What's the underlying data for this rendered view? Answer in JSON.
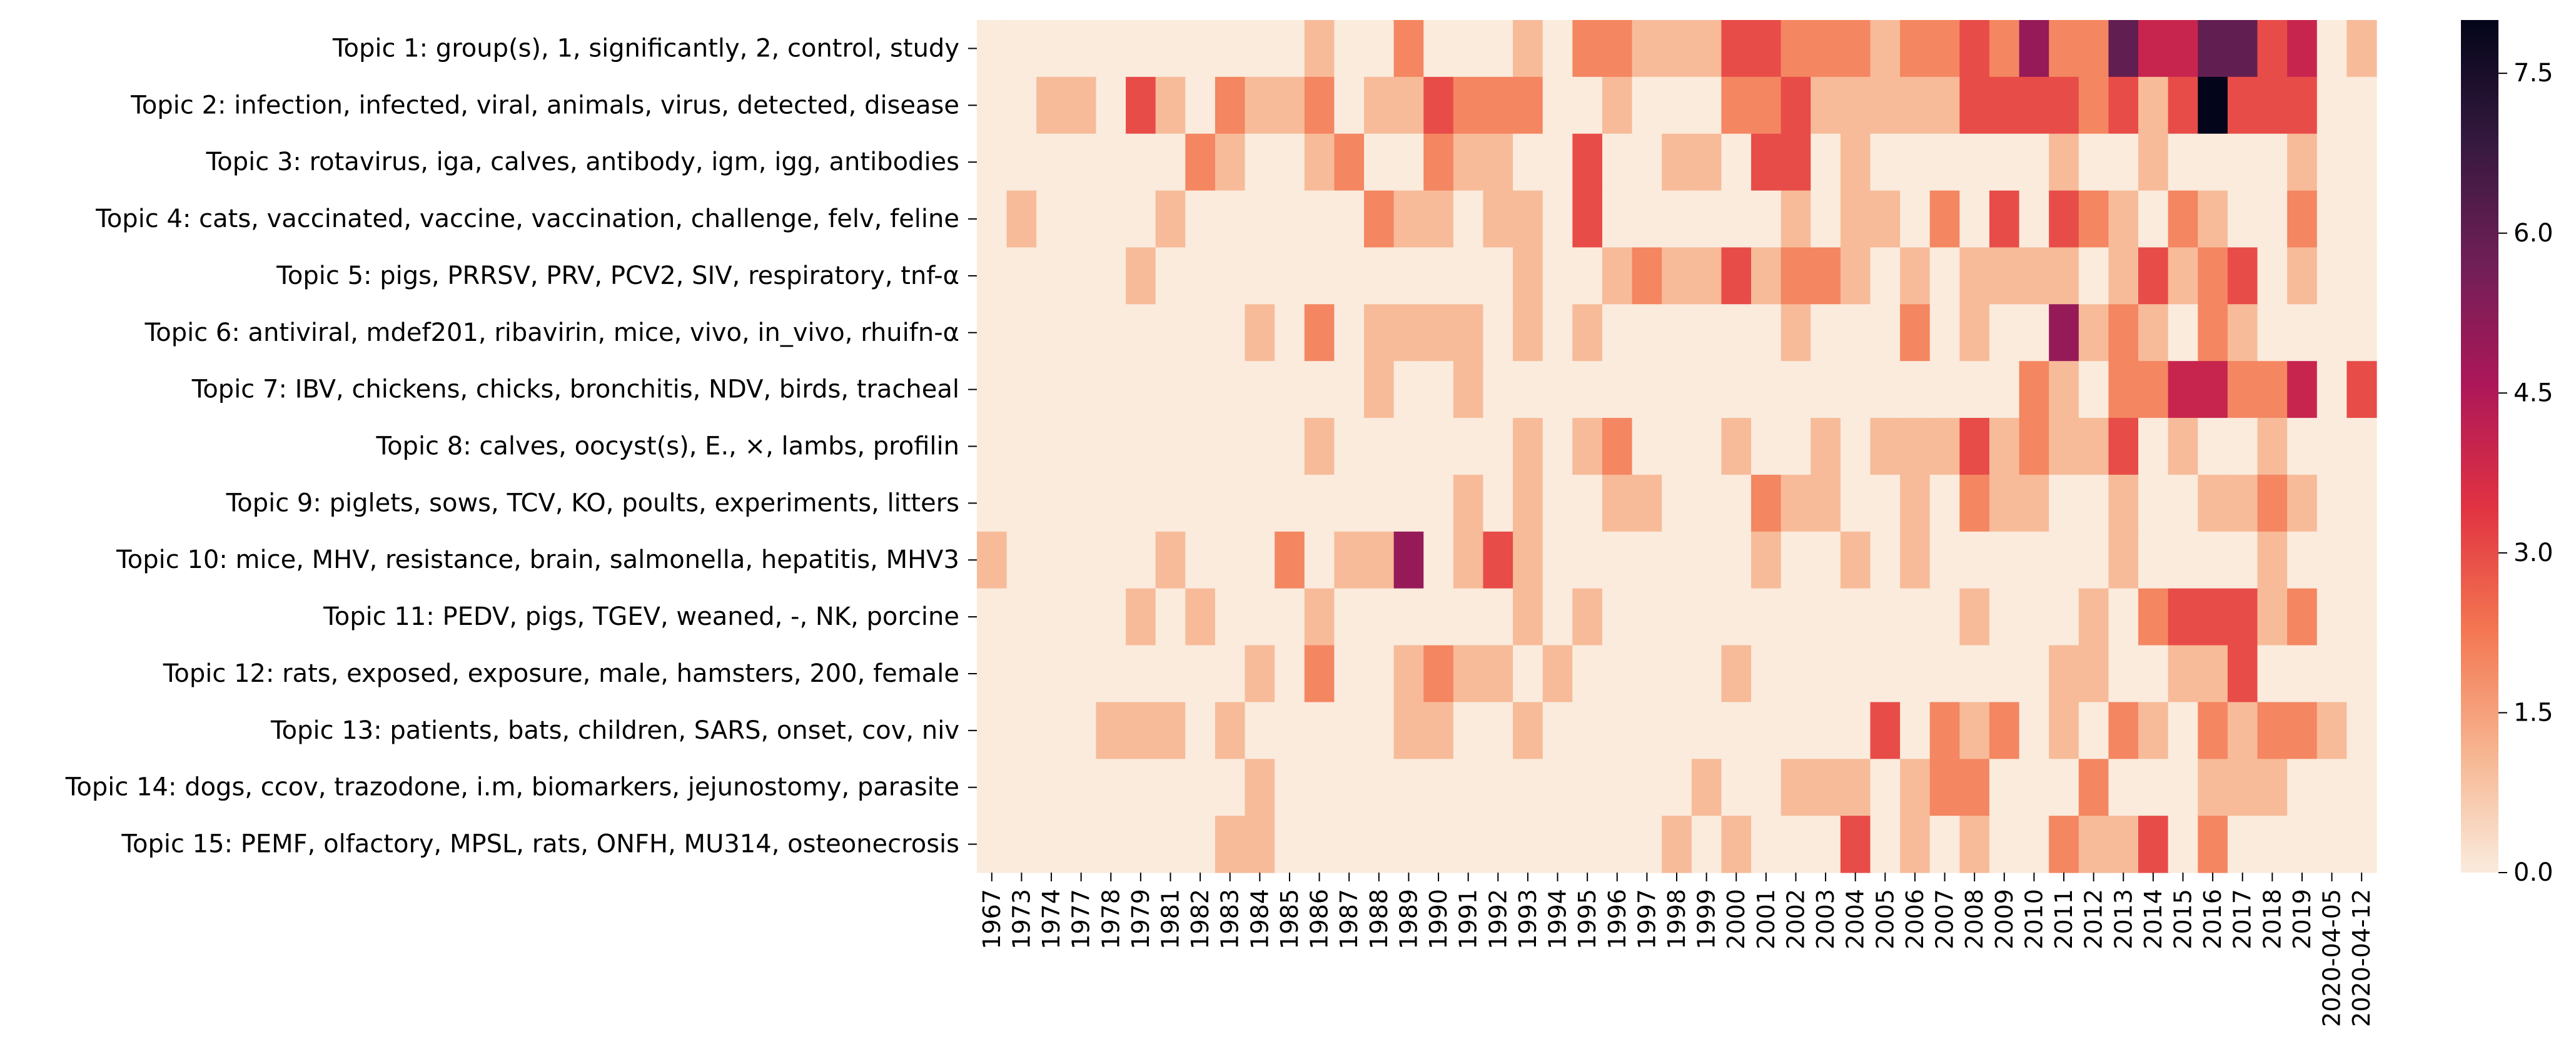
{
  "chart_data": {
    "type": "heatmap",
    "rows": [
      "Topic 1: group(s), 1, significantly, 2, control, study",
      "Topic 2: infection, infected, viral, animals, virus, detected, disease",
      "Topic 3: rotavirus, iga, calves, antibody, igm, igg, antibodies",
      "Topic 4: cats, vaccinated, vaccine, vaccination, challenge, felv, feline",
      "Topic 5: pigs, PRRSV, PRV, PCV2, SIV, respiratory, tnf-α",
      "Topic 6: antiviral, mdef201, ribavirin, mice, vivo, in_vivo, rhuifn-α",
      "Topic 7: IBV, chickens, chicks, bronchitis, NDV, birds, tracheal",
      "Topic 8: calves, oocyst(s), E., ×, lambs, profilin",
      "Topic 9: piglets, sows, TCV, KO, poults, experiments, litters",
      "Topic 10: mice, MHV, resistance, brain, salmonella, hepatitis, MHV3",
      "Topic 11: PEDV, pigs, TGEV, weaned, -, NK, porcine",
      "Topic 12: rats, exposed, exposure, male, hamsters, 200, female",
      "Topic 13: patients, bats, children, SARS, onset, cov, niv",
      "Topic 14: dogs, ccov, trazodone, i.m, biomarkers, jejunostomy, parasite",
      "Topic 15: PEMF, olfactory, MPSL, rats, ONFH, MU314, osteonecrosis"
    ],
    "columns": [
      "1967",
      "1973",
      "1974",
      "1977",
      "1978",
      "1979",
      "1981",
      "1982",
      "1983",
      "1984",
      "1985",
      "1986",
      "1987",
      "1988",
      "1989",
      "1990",
      "1991",
      "1992",
      "1993",
      "1994",
      "1995",
      "1996",
      "1997",
      "1998",
      "1999",
      "2000",
      "2001",
      "2002",
      "2003",
      "2004",
      "2005",
      "2006",
      "2007",
      "2008",
      "2009",
      "2010",
      "2011",
      "2012",
      "2013",
      "2014",
      "2015",
      "2016",
      "2017",
      "2018",
      "2019",
      "2020-04-05",
      "2020-04-12"
    ],
    "values": [
      [
        0,
        0,
        0,
        0,
        0,
        0,
        0,
        0,
        0,
        0,
        0,
        1,
        0,
        0,
        2,
        0,
        0,
        0,
        1,
        0,
        2,
        2,
        1,
        1,
        1,
        3,
        3,
        2,
        2,
        2,
        1,
        2,
        2,
        3,
        2,
        5,
        2,
        2,
        6,
        4,
        4,
        6,
        6,
        3,
        4,
        0,
        1
      ],
      [
        0,
        0,
        1,
        1,
        0,
        3,
        1,
        0,
        2,
        1,
        1,
        2,
        0,
        1,
        1,
        3,
        2,
        2,
        2,
        0,
        0,
        1,
        0,
        0,
        0,
        2,
        2,
        3,
        1,
        1,
        1,
        1,
        1,
        3,
        3,
        3,
        3,
        2,
        3,
        1,
        3,
        8,
        3,
        3,
        3,
        0,
        0
      ],
      [
        0,
        0,
        0,
        0,
        0,
        0,
        0,
        2,
        1,
        0,
        0,
        1,
        2,
        0,
        0,
        2,
        1,
        1,
        0,
        0,
        3,
        0,
        0,
        1,
        1,
        0,
        3,
        3,
        0,
        1,
        0,
        0,
        0,
        0,
        0,
        0,
        1,
        0,
        0,
        1,
        0,
        0,
        0,
        0,
        1,
        0,
        0
      ],
      [
        0,
        1,
        0,
        0,
        0,
        0,
        1,
        0,
        0,
        0,
        0,
        0,
        0,
        2,
        1,
        1,
        0,
        1,
        1,
        0,
        3,
        0,
        0,
        0,
        0,
        0,
        0,
        1,
        0,
        1,
        1,
        0,
        2,
        0,
        3,
        0,
        3,
        2,
        1,
        0,
        2,
        1,
        0,
        0,
        2,
        0,
        0
      ],
      [
        0,
        0,
        0,
        0,
        0,
        1,
        0,
        0,
        0,
        0,
        0,
        0,
        0,
        0,
        0,
        0,
        0,
        0,
        1,
        0,
        0,
        1,
        2,
        1,
        1,
        3,
        1,
        2,
        2,
        1,
        0,
        1,
        0,
        1,
        1,
        1,
        1,
        0,
        1,
        3,
        1,
        2,
        3,
        0,
        1,
        0,
        0
      ],
      [
        0,
        0,
        0,
        0,
        0,
        0,
        0,
        0,
        0,
        1,
        0,
        2,
        0,
        1,
        1,
        1,
        1,
        0,
        1,
        0,
        1,
        0,
        0,
        0,
        0,
        0,
        0,
        1,
        0,
        0,
        0,
        2,
        0,
        1,
        0,
        0,
        5,
        1,
        2,
        1,
        0,
        2,
        1,
        0,
        0,
        0,
        0
      ],
      [
        0,
        0,
        0,
        0,
        0,
        0,
        0,
        0,
        0,
        0,
        0,
        0,
        0,
        1,
        0,
        0,
        1,
        0,
        0,
        0,
        0,
        0,
        0,
        0,
        0,
        0,
        0,
        0,
        0,
        0,
        0,
        0,
        0,
        0,
        0,
        2,
        1,
        0,
        2,
        2,
        4,
        4,
        2,
        2,
        4,
        0,
        3
      ],
      [
        0,
        0,
        0,
        0,
        0,
        0,
        0,
        0,
        0,
        0,
        0,
        1,
        0,
        0,
        0,
        0,
        0,
        0,
        1,
        0,
        1,
        2,
        0,
        0,
        0,
        1,
        0,
        0,
        1,
        0,
        1,
        1,
        1,
        3,
        1,
        2,
        1,
        1,
        3,
        0,
        1,
        0,
        0,
        1,
        0,
        0,
        0
      ],
      [
        0,
        0,
        0,
        0,
        0,
        0,
        0,
        0,
        0,
        0,
        0,
        0,
        0,
        0,
        0,
        0,
        1,
        0,
        1,
        0,
        0,
        1,
        1,
        0,
        0,
        0,
        2,
        1,
        1,
        0,
        0,
        1,
        0,
        2,
        1,
        1,
        0,
        0,
        1,
        0,
        0,
        1,
        1,
        2,
        1,
        0,
        0
      ],
      [
        1,
        0,
        0,
        0,
        0,
        0,
        1,
        0,
        0,
        0,
        2,
        0,
        1,
        1,
        5,
        0,
        1,
        3,
        1,
        0,
        0,
        0,
        0,
        0,
        0,
        0,
        1,
        0,
        0,
        1,
        0,
        1,
        0,
        0,
        0,
        0,
        0,
        0,
        1,
        0,
        0,
        0,
        0,
        1,
        0,
        0,
        0
      ],
      [
        0,
        0,
        0,
        0,
        0,
        1,
        0,
        1,
        0,
        0,
        0,
        1,
        0,
        0,
        0,
        0,
        0,
        0,
        1,
        0,
        1,
        0,
        0,
        0,
        0,
        0,
        0,
        0,
        0,
        0,
        0,
        0,
        0,
        1,
        0,
        0,
        0,
        1,
        0,
        2,
        3,
        3,
        3,
        1,
        2,
        0,
        0
      ],
      [
        0,
        0,
        0,
        0,
        0,
        0,
        0,
        0,
        0,
        1,
        0,
        2,
        0,
        0,
        1,
        2,
        1,
        1,
        0,
        1,
        0,
        0,
        0,
        0,
        0,
        1,
        0,
        0,
        0,
        0,
        0,
        0,
        0,
        0,
        0,
        0,
        1,
        1,
        0,
        0,
        1,
        1,
        3,
        0,
        0,
        0,
        0
      ],
      [
        0,
        0,
        0,
        0,
        1,
        1,
        1,
        0,
        1,
        0,
        0,
        0,
        0,
        0,
        1,
        1,
        0,
        0,
        1,
        0,
        0,
        0,
        0,
        0,
        0,
        0,
        0,
        0,
        0,
        0,
        3,
        0,
        2,
        1,
        2,
        0,
        1,
        0,
        2,
        1,
        0,
        2,
        1,
        2,
        2,
        1,
        0
      ],
      [
        0,
        0,
        0,
        0,
        0,
        0,
        0,
        0,
        0,
        1,
        0,
        0,
        0,
        0,
        0,
        0,
        0,
        0,
        0,
        0,
        0,
        0,
        0,
        0,
        1,
        0,
        0,
        1,
        1,
        1,
        0,
        1,
        2,
        2,
        0,
        0,
        0,
        2,
        0,
        0,
        0,
        1,
        1,
        1,
        0,
        0,
        0
      ],
      [
        0,
        0,
        0,
        0,
        0,
        0,
        0,
        0,
        1,
        1,
        0,
        0,
        0,
        0,
        0,
        0,
        0,
        0,
        0,
        0,
        0,
        0,
        0,
        1,
        0,
        1,
        0,
        0,
        0,
        3,
        0,
        1,
        0,
        1,
        0,
        0,
        2,
        1,
        1,
        3,
        0,
        2,
        0,
        0,
        0,
        0,
        0
      ]
    ],
    "vmin": 0,
    "vmax": 8,
    "colorbar_ticks": [
      "0.0",
      "1.5",
      "3.0",
      "4.5",
      "6.0",
      "7.5"
    ],
    "colorbar_tick_values": [
      0,
      1.5,
      3,
      4.5,
      6,
      7.5
    ],
    "colormap": "rocket",
    "colormap_stops": [
      "#faebdd",
      "#f6b48f",
      "#f37651",
      "#e13342",
      "#ad1759",
      "#701f57",
      "#35193e",
      "#03051a"
    ],
    "title": "",
    "xlabel": "",
    "ylabel": ""
  }
}
